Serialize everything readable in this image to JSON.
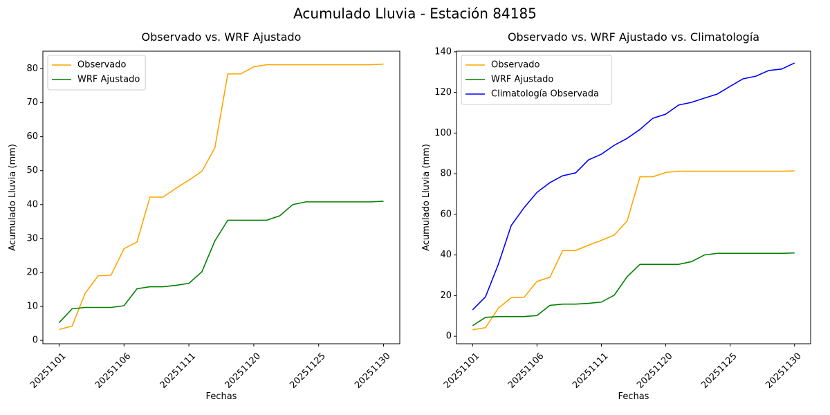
{
  "title": "Acumulado Lluvia - Estación 84185",
  "chart_data": [
    {
      "type": "line",
      "title": "Observado vs. WRF Ajustado",
      "xlabel": "Fechas",
      "ylabel": "Acumulado Lluvia (mm)",
      "categories": [
        "20251101",
        null,
        null,
        null,
        null,
        "20251106",
        null,
        null,
        null,
        null,
        "20251111",
        null,
        null,
        null,
        null,
        "20251120",
        null,
        null,
        null,
        null,
        "20251125",
        null,
        null,
        null,
        null,
        "20251130"
      ],
      "series": [
        {
          "name": "Observado",
          "color": "orange",
          "values": [
            3.2,
            4.2,
            13.8,
            19.0,
            19.2,
            27.0,
            29.0,
            42.2,
            42.2,
            44.8,
            47.2,
            49.8,
            56.7,
            78.5,
            78.5,
            80.6,
            81.2,
            81.2,
            81.2,
            81.2,
            81.2,
            81.2,
            81.2,
            81.2,
            81.2,
            81.4
          ]
        },
        {
          "name": "WRF Ajustado",
          "color": "green",
          "values": [
            5.2,
            9.3,
            9.7,
            9.7,
            9.7,
            10.2,
            15.2,
            15.8,
            15.8,
            16.2,
            16.8,
            20.2,
            29.3,
            35.4,
            35.4,
            35.4,
            35.4,
            36.7,
            40.0,
            40.8,
            40.8,
            40.8,
            40.8,
            40.8,
            40.8,
            41.0
          ]
        }
      ],
      "ylim": [
        -1.0,
        85.2
      ],
      "yticks": [
        0,
        10,
        20,
        30,
        40,
        50,
        60,
        70,
        80
      ],
      "legend": "upper left"
    },
    {
      "type": "line",
      "title": "Observado vs. WRF Ajustado vs. Climatología",
      "xlabel": "Fechas",
      "ylabel": "Acumulado Lluvia (mm)",
      "categories": [
        "20251101",
        null,
        null,
        null,
        null,
        "20251106",
        null,
        null,
        null,
        null,
        "20251111",
        null,
        null,
        null,
        null,
        "20251120",
        null,
        null,
        null,
        null,
        "20251125",
        null,
        null,
        null,
        null,
        "20251130"
      ],
      "series": [
        {
          "name": "Observado",
          "color": "orange",
          "values": [
            3.2,
            4.2,
            13.8,
            19.0,
            19.2,
            27.0,
            29.0,
            42.2,
            42.2,
            44.8,
            47.2,
            49.8,
            56.7,
            78.5,
            78.5,
            80.6,
            81.2,
            81.2,
            81.2,
            81.2,
            81.2,
            81.2,
            81.2,
            81.2,
            81.2,
            81.4
          ]
        },
        {
          "name": "WRF Ajustado",
          "color": "green",
          "values": [
            5.2,
            9.3,
            9.7,
            9.7,
            9.7,
            10.2,
            15.2,
            15.8,
            15.8,
            16.2,
            16.8,
            20.2,
            29.3,
            35.4,
            35.4,
            35.4,
            35.4,
            36.7,
            40.0,
            40.8,
            40.8,
            40.8,
            40.8,
            40.8,
            40.8,
            41.0
          ]
        },
        {
          "name": "Climatología Observada",
          "color": "blue",
          "values": [
            13.0,
            19.4,
            35.4,
            54.5,
            63.3,
            70.8,
            75.6,
            79.0,
            80.4,
            86.8,
            89.6,
            94.0,
            97.4,
            101.8,
            107.3,
            109.3,
            113.8,
            115.1,
            117.2,
            119.2,
            123.0,
            126.7,
            128.0,
            130.8,
            131.5,
            134.5
          ]
        }
      ],
      "ylim": [
        -3.7,
        140.3
      ],
      "yticks": [
        0,
        20,
        40,
        60,
        80,
        100,
        120,
        140
      ],
      "legend": "upper left"
    }
  ]
}
